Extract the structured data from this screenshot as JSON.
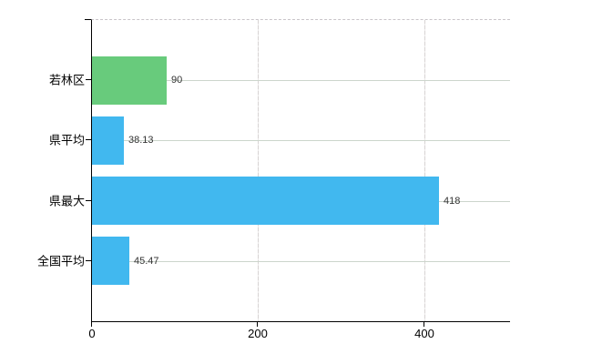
{
  "chart_data": {
    "type": "bar",
    "orientation": "horizontal",
    "title": "",
    "xlabel": "",
    "ylabel": "",
    "categories": [
      "若林区",
      "県平均",
      "県最大",
      "全国平均"
    ],
    "values": [
      90,
      38.13,
      418,
      45.47
    ],
    "value_labels": [
      "90",
      "38.13",
      "418",
      "45.47"
    ],
    "bar_colors": [
      "#68cb7c",
      "#41b8ef",
      "#41b8ef",
      "#41b8ef"
    ],
    "xlim": [
      0,
      502
    ],
    "xticks": [
      0,
      200,
      400
    ],
    "xtick_labels": [
      "0",
      "200",
      "400"
    ],
    "grid": true,
    "legend_position": "none"
  },
  "style": {
    "background": "#ffffff",
    "green_bar": "#68cb7c",
    "blue_bar": "#41b8ef",
    "h_gridline": "#ccd5cc",
    "v_gridline": "#d7d3d3",
    "top_border_dashed": "#c9c4c9",
    "axis_line": "#000000",
    "value_text": "#333333",
    "axis_text": "#000000"
  }
}
